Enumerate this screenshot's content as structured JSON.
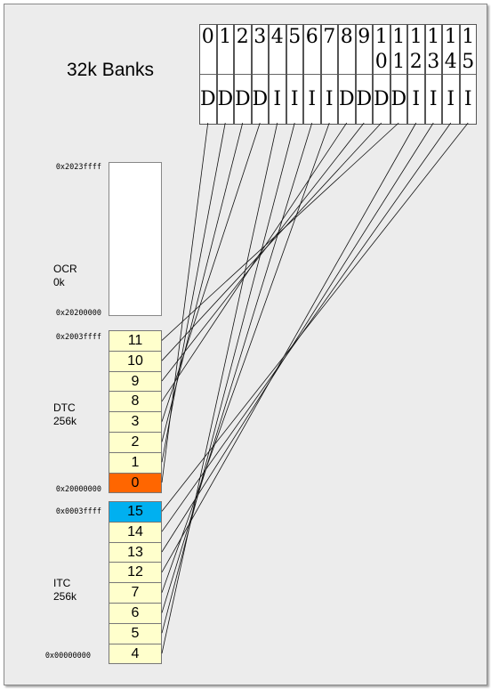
{
  "title": "32k Banks",
  "banks": [
    {
      "id": "0",
      "type": "D"
    },
    {
      "id": "1",
      "type": "D"
    },
    {
      "id": "2",
      "type": "D"
    },
    {
      "id": "3",
      "type": "D"
    },
    {
      "id": "4",
      "type": "I"
    },
    {
      "id": "5",
      "type": "I"
    },
    {
      "id": "6",
      "type": "I"
    },
    {
      "id": "7",
      "type": "I"
    },
    {
      "id": "8",
      "type": "D"
    },
    {
      "id": "9",
      "type": "D"
    },
    {
      "id": "10",
      "type": "D"
    },
    {
      "id": "11",
      "type": "D"
    },
    {
      "id": "12",
      "type": "I"
    },
    {
      "id": "13",
      "type": "I"
    },
    {
      "id": "14",
      "type": "I"
    },
    {
      "id": "15",
      "type": "I"
    }
  ],
  "ocr": {
    "name": "OCR",
    "size": "0k",
    "addr_top": "0x2023ffff",
    "addr_bottom": "0x20200000"
  },
  "dtc": {
    "name": "DTC",
    "size": "256k",
    "addr_top": "0x2003ffff",
    "addr_bottom": "0x20000000",
    "slots": [
      "11",
      "10",
      "9",
      "8",
      "3",
      "2",
      "1",
      "0"
    ]
  },
  "itc": {
    "name": "ITC",
    "size": "256k",
    "addr_top": "0x0003ffff",
    "addr_bottom": "0x00000000",
    "slots": [
      "15",
      "14",
      "13",
      "12",
      "7",
      "6",
      "5",
      "4"
    ]
  },
  "colors": {
    "slot_fill": "#ffffcc",
    "dtc_highlight": "#ff6600",
    "itc_highlight": "#00b0f0",
    "ocr_fill": "#ffffff",
    "background": "#ececec"
  }
}
